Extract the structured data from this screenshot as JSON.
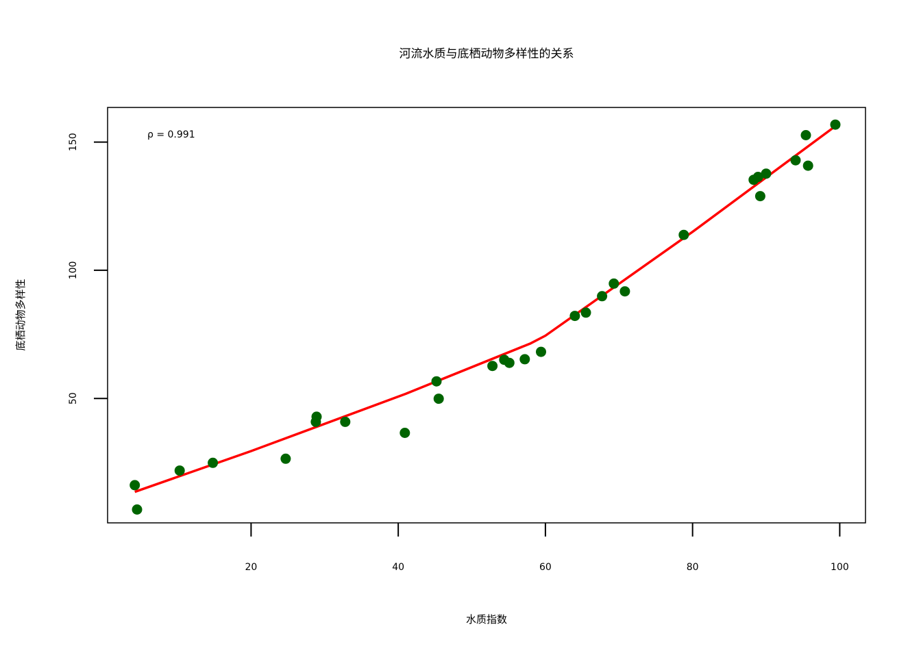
{
  "chart_data": {
    "type": "scatter",
    "title": "河流水质与底栖动物多样性的关系",
    "xlabel": "水质指数",
    "ylabel": "底栖动物多样性",
    "annotation": "ρ = 0.991",
    "xlim": [
      0.5,
      103.5
    ],
    "ylim": [
      1.5,
      163.5
    ],
    "x_ticks": [
      20,
      40,
      60,
      80,
      100
    ],
    "y_ticks": [
      50,
      100,
      150
    ],
    "grid": false,
    "point_color": "#006400",
    "line_color": "#ff0000",
    "points": [
      {
        "x": 4.2,
        "y": 16.2
      },
      {
        "x": 4.5,
        "y": 6.7
      },
      {
        "x": 10.3,
        "y": 21.9
      },
      {
        "x": 14.8,
        "y": 24.9
      },
      {
        "x": 24.7,
        "y": 26.5
      },
      {
        "x": 28.8,
        "y": 40.9
      },
      {
        "x": 28.9,
        "y": 42.9
      },
      {
        "x": 32.8,
        "y": 40.9
      },
      {
        "x": 40.9,
        "y": 36.6
      },
      {
        "x": 45.2,
        "y": 56.7
      },
      {
        "x": 45.5,
        "y": 49.9
      },
      {
        "x": 52.8,
        "y": 62.7
      },
      {
        "x": 54.4,
        "y": 65.1
      },
      {
        "x": 55.1,
        "y": 63.9
      },
      {
        "x": 57.2,
        "y": 65.3
      },
      {
        "x": 59.4,
        "y": 68.2
      },
      {
        "x": 64.0,
        "y": 82.2
      },
      {
        "x": 65.5,
        "y": 83.5
      },
      {
        "x": 67.7,
        "y": 89.9
      },
      {
        "x": 69.3,
        "y": 94.8
      },
      {
        "x": 70.8,
        "y": 91.8
      },
      {
        "x": 78.8,
        "y": 113.8
      },
      {
        "x": 88.3,
        "y": 135.3
      },
      {
        "x": 88.9,
        "y": 136.4
      },
      {
        "x": 89.2,
        "y": 128.9
      },
      {
        "x": 90.0,
        "y": 137.7
      },
      {
        "x": 94.0,
        "y": 142.9
      },
      {
        "x": 95.4,
        "y": 152.7
      },
      {
        "x": 95.7,
        "y": 140.8
      },
      {
        "x": 99.4,
        "y": 156.8
      }
    ],
    "fit_line": {
      "x": [
        4.2,
        20,
        41,
        58,
        60,
        80,
        99.4
      ],
      "y": [
        13.6,
        29.5,
        51.8,
        71.5,
        74.5,
        115.0,
        156.2
      ]
    }
  }
}
